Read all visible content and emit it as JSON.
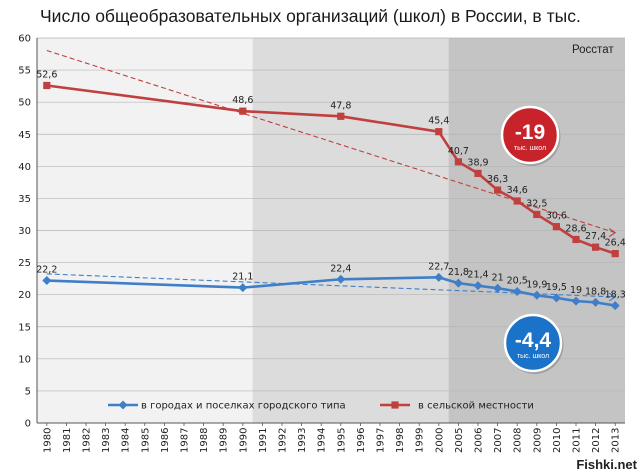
{
  "chart_data": {
    "type": "line",
    "title": "Число общеобразовательных организаций (школ) в России, в тыс.",
    "source": "Росстат",
    "watermark": "Fishki.net",
    "x": [
      "1980",
      "1981",
      "1982",
      "1983",
      "1984",
      "1985",
      "1986",
      "1987",
      "1988",
      "1989",
      "1990",
      "1991",
      "1992",
      "1993",
      "1994",
      "1995",
      "1996",
      "1997",
      "1998",
      "1999",
      "2000",
      "2005",
      "2006",
      "2007",
      "2008",
      "2009",
      "2010",
      "2011",
      "2012",
      "2013"
    ],
    "ylim": [
      0,
      60
    ],
    "yticks": [
      0,
      5,
      10,
      15,
      20,
      25,
      30,
      35,
      40,
      45,
      50,
      55,
      60
    ],
    "grid": true,
    "legend_position": "bottom-center",
    "series": [
      {
        "name": "в городах и поселках городского типа",
        "color": "#3f7fc8",
        "points": [
          [
            "1980",
            22.2
          ],
          [
            "1990",
            21.1
          ],
          [
            "1995",
            22.4
          ],
          [
            "2000",
            22.7
          ],
          [
            "2005",
            21.8
          ],
          [
            "2006",
            21.4
          ],
          [
            "2007",
            21
          ],
          [
            "2008",
            20.5
          ],
          [
            "2009",
            19.9
          ],
          [
            "2010",
            19.5
          ],
          [
            "2011",
            19
          ],
          [
            "2012",
            18.8
          ],
          [
            "2013",
            18.3
          ]
        ],
        "labels": [
          "22,2",
          "21,1",
          "22,4",
          "22,7",
          "21,8",
          "21,4",
          "21",
          "20,5",
          "19,9",
          "19,5",
          "19",
          "18,8",
          "18,3"
        ],
        "badge": {
          "value": "-4,4",
          "caption": "тыс. школ",
          "color": "#1a73c9"
        }
      },
      {
        "name": "в сельской местности",
        "color": "#c0403e",
        "points": [
          [
            "1980",
            52.6
          ],
          [
            "1990",
            48.6
          ],
          [
            "1995",
            47.8
          ],
          [
            "2000",
            45.4
          ],
          [
            "2005",
            40.7
          ],
          [
            "2006",
            38.9
          ],
          [
            "2007",
            36.3
          ],
          [
            "2008",
            34.6
          ],
          [
            "2009",
            32.5
          ],
          [
            "2010",
            30.6
          ],
          [
            "2011",
            28.6
          ],
          [
            "2012",
            27.4
          ],
          [
            "2013",
            26.4
          ]
        ],
        "labels": [
          "52,6",
          "48,6",
          "47,8",
          "45,4",
          "40,7",
          "38,9",
          "36,3",
          "34,6",
          "32,5",
          "30,6",
          "28,6",
          "27,4",
          "26,4"
        ],
        "badge": {
          "value": "-19",
          "caption": "тыс. школ",
          "color": "#c8222a"
        }
      }
    ]
  }
}
